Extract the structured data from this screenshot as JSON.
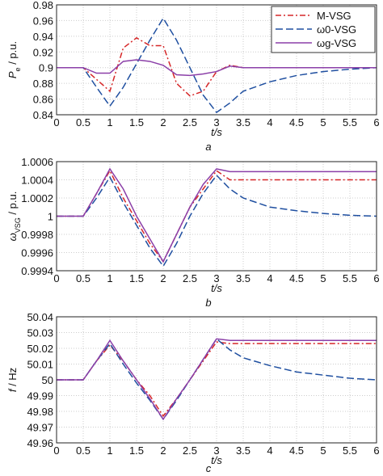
{
  "chart_data": [
    {
      "type": "line",
      "ylabel": [
        "P",
        "e",
        " / p.u."
      ],
      "xlabel": "t/s",
      "caption": "a",
      "x": [
        0,
        0.5,
        0.75,
        1,
        1.25,
        1.5,
        1.75,
        2,
        2.25,
        2.5,
        2.75,
        3,
        3.25,
        3.5,
        4,
        4.5,
        5,
        5.5,
        6
      ],
      "xlim": [
        0,
        6
      ],
      "xticks": [
        0,
        0.5,
        1,
        1.5,
        2,
        2.5,
        3,
        3.5,
        4,
        4.5,
        5,
        5.5,
        6
      ],
      "ylim": [
        0.84,
        0.98
      ],
      "yticks": [
        0.84,
        0.86,
        0.88,
        0.9,
        0.92,
        0.94,
        0.96,
        0.98
      ],
      "legend": "upper right",
      "series": [
        {
          "name": "M-VSG",
          "color": "#d62728",
          "style": "dashdot",
          "values": [
            0.9,
            0.9,
            0.885,
            0.87,
            0.925,
            0.938,
            0.928,
            0.928,
            0.88,
            0.864,
            0.87,
            0.895,
            0.903,
            0.9,
            0.9,
            0.9,
            0.9,
            0.9,
            0.9
          ]
        },
        {
          "name": "ω0-VSG",
          "color": "#1f4fa0",
          "style": "dashed",
          "values": [
            0.9,
            0.9,
            0.875,
            0.851,
            0.875,
            0.905,
            0.935,
            0.963,
            0.935,
            0.9,
            0.865,
            0.843,
            0.855,
            0.87,
            0.882,
            0.89,
            0.895,
            0.898,
            0.9
          ]
        },
        {
          "name": "ωg-VSG",
          "color": "#8b3fa8",
          "style": "solid",
          "values": [
            0.9,
            0.9,
            0.893,
            0.893,
            0.908,
            0.91,
            0.908,
            0.903,
            0.891,
            0.89,
            0.892,
            0.895,
            0.902,
            0.9,
            0.9,
            0.9,
            0.9,
            0.9,
            0.9
          ]
        }
      ]
    },
    {
      "type": "line",
      "ylabel": [
        "ω",
        "VSG",
        " / p.u."
      ],
      "xlabel": "t/s",
      "caption": "b",
      "x": [
        0,
        0.5,
        0.75,
        1,
        1.25,
        1.5,
        1.75,
        2,
        2.25,
        2.5,
        2.75,
        3,
        3.25,
        3.5,
        4,
        4.5,
        5,
        5.5,
        6
      ],
      "xlim": [
        0,
        6
      ],
      "xticks": [
        0,
        0.5,
        1,
        1.5,
        2,
        2.5,
        3,
        3.5,
        4,
        4.5,
        5,
        5.5,
        6
      ],
      "ylim": [
        0.9994,
        1.0006
      ],
      "yticks": [
        0.9994,
        0.9996,
        0.9998,
        1,
        1.0002,
        1.0004,
        1.0006
      ],
      "series": [
        {
          "color": "#d62728",
          "style": "dashdot",
          "values": [
            1,
            1,
            1.00025,
            1.0005,
            1.0002,
            0.99995,
            0.9997,
            0.9995,
            0.9998,
            1.0001,
            1.0003,
            1.0005,
            1.0004,
            1.0004,
            1.0004,
            1.0004,
            1.0004,
            1.0004,
            1.0004
          ]
        },
        {
          "color": "#1f4fa0",
          "style": "dashed",
          "values": [
            1,
            1,
            1.0002,
            1.00043,
            1.00015,
            0.9999,
            0.99965,
            0.99945,
            0.9997,
            1,
            1.00025,
            1.00045,
            1.0003,
            1.0002,
            1.0001,
            1.00006,
            1.00003,
            1.00001,
            1
          ]
        },
        {
          "color": "#8b3fa8",
          "style": "solid",
          "values": [
            1,
            1,
            1.00025,
            1.00052,
            1.0003,
            1,
            0.99975,
            0.9995,
            0.9998,
            1.0001,
            1.00035,
            1.00052,
            1.00049,
            1.00049,
            1.00049,
            1.00049,
            1.00049,
            1.00049,
            1.00049
          ]
        }
      ]
    },
    {
      "type": "line",
      "ylabel": [
        "f",
        "",
        " / Hz"
      ],
      "xlabel": "t/s",
      "caption": "c",
      "x": [
        0,
        0.5,
        0.75,
        1,
        1.25,
        1.5,
        1.75,
        2,
        2.25,
        2.5,
        2.75,
        3,
        3.25,
        3.5,
        4,
        4.5,
        5,
        5.5,
        6
      ],
      "xlim": [
        0,
        6
      ],
      "xticks": [
        0,
        0.5,
        1,
        1.5,
        2,
        2.5,
        3,
        3.5,
        4,
        4.5,
        5,
        5.5,
        6
      ],
      "ylim": [
        49.96,
        50.04
      ],
      "yticks": [
        49.96,
        49.97,
        49.98,
        49.99,
        50,
        50.01,
        50.02,
        50.03,
        50.04
      ],
      "series": [
        {
          "color": "#d62728",
          "style": "dashdot",
          "values": [
            50,
            50,
            50.012,
            50.022,
            50.012,
            50,
            49.99,
            49.977,
            49.988,
            50,
            50.012,
            50.024,
            50.023,
            50.023,
            50.023,
            50.023,
            50.023,
            50.023,
            50.023
          ]
        },
        {
          "color": "#1f4fa0",
          "style": "dashed",
          "values": [
            50,
            50,
            50.012,
            50.023,
            50.01,
            49.998,
            49.987,
            49.975,
            49.987,
            50,
            50.013,
            50.026,
            50.019,
            50.014,
            50.009,
            50.005,
            50.003,
            50.001,
            50
          ]
        },
        {
          "color": "#8b3fa8",
          "style": "solid",
          "values": [
            50,
            50,
            50.012,
            50.025,
            50.012,
            50,
            49.988,
            49.975,
            49.988,
            50,
            50.013,
            50.026,
            50.025,
            50.025,
            50.025,
            50.025,
            50.025,
            50.025,
            50.025
          ]
        }
      ]
    }
  ]
}
